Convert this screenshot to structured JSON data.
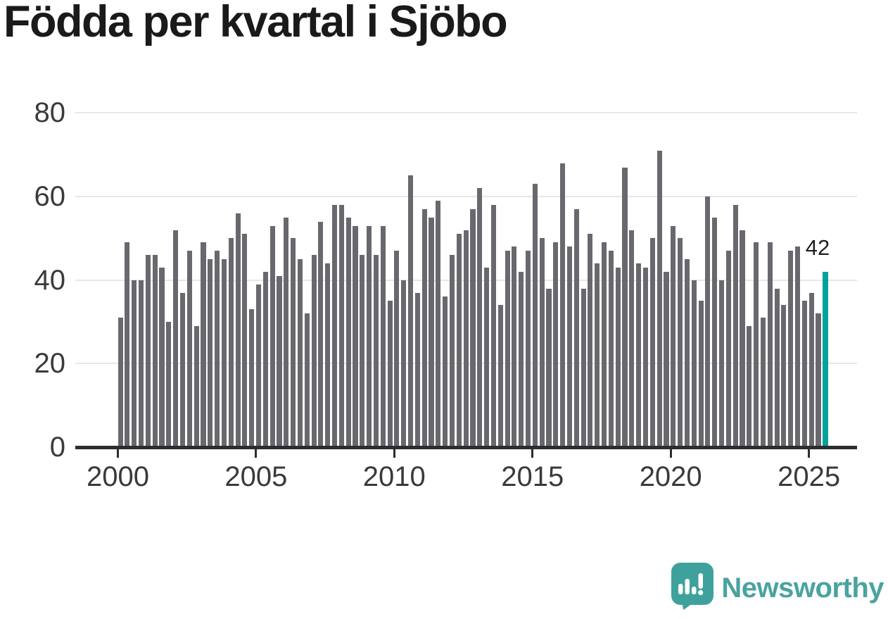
{
  "title": "Födda per kvartal i Sjöbo",
  "chart_data": {
    "type": "bar",
    "title": "Födda per kvartal i Sjöbo",
    "x_start_quarter": "2000-Q1",
    "x_end_quarter": "2025-Q3",
    "values": [
      31,
      49,
      40,
      40,
      46,
      46,
      43,
      30,
      52,
      37,
      47,
      29,
      49,
      45,
      47,
      45,
      50,
      56,
      51,
      33,
      39,
      42,
      53,
      41,
      55,
      50,
      45,
      32,
      46,
      54,
      44,
      58,
      58,
      55,
      53,
      46,
      53,
      46,
      53,
      35,
      47,
      40,
      65,
      37,
      57,
      55,
      59,
      36,
      46,
      51,
      52,
      57,
      62,
      43,
      58,
      34,
      47,
      48,
      42,
      47,
      63,
      50,
      38,
      49,
      68,
      48,
      57,
      38,
      51,
      44,
      49,
      47,
      43,
      67,
      52,
      44,
      43,
      50,
      71,
      42,
      53,
      50,
      45,
      40,
      35,
      60,
      55,
      40,
      47,
      58,
      52,
      29,
      49,
      31,
      49,
      38,
      34,
      47,
      48,
      35,
      37,
      32,
      42
    ],
    "yticks": [
      0,
      20,
      40,
      60,
      80
    ],
    "xticks": [
      "2000",
      "2005",
      "2010",
      "2015",
      "2020",
      "2025"
    ],
    "ylim": [
      0,
      80
    ],
    "grid": true,
    "legend": "none",
    "bar_color": "#69686E",
    "highlight_color": "#00A29C",
    "highlight_last_bar": true,
    "highlight_value_label": "42"
  },
  "branding": {
    "logo_text": "Newsworthy",
    "logo_color": "#4AA3A0",
    "logo_icon": "newsworthy-speech-bubble-barchart-icon"
  }
}
